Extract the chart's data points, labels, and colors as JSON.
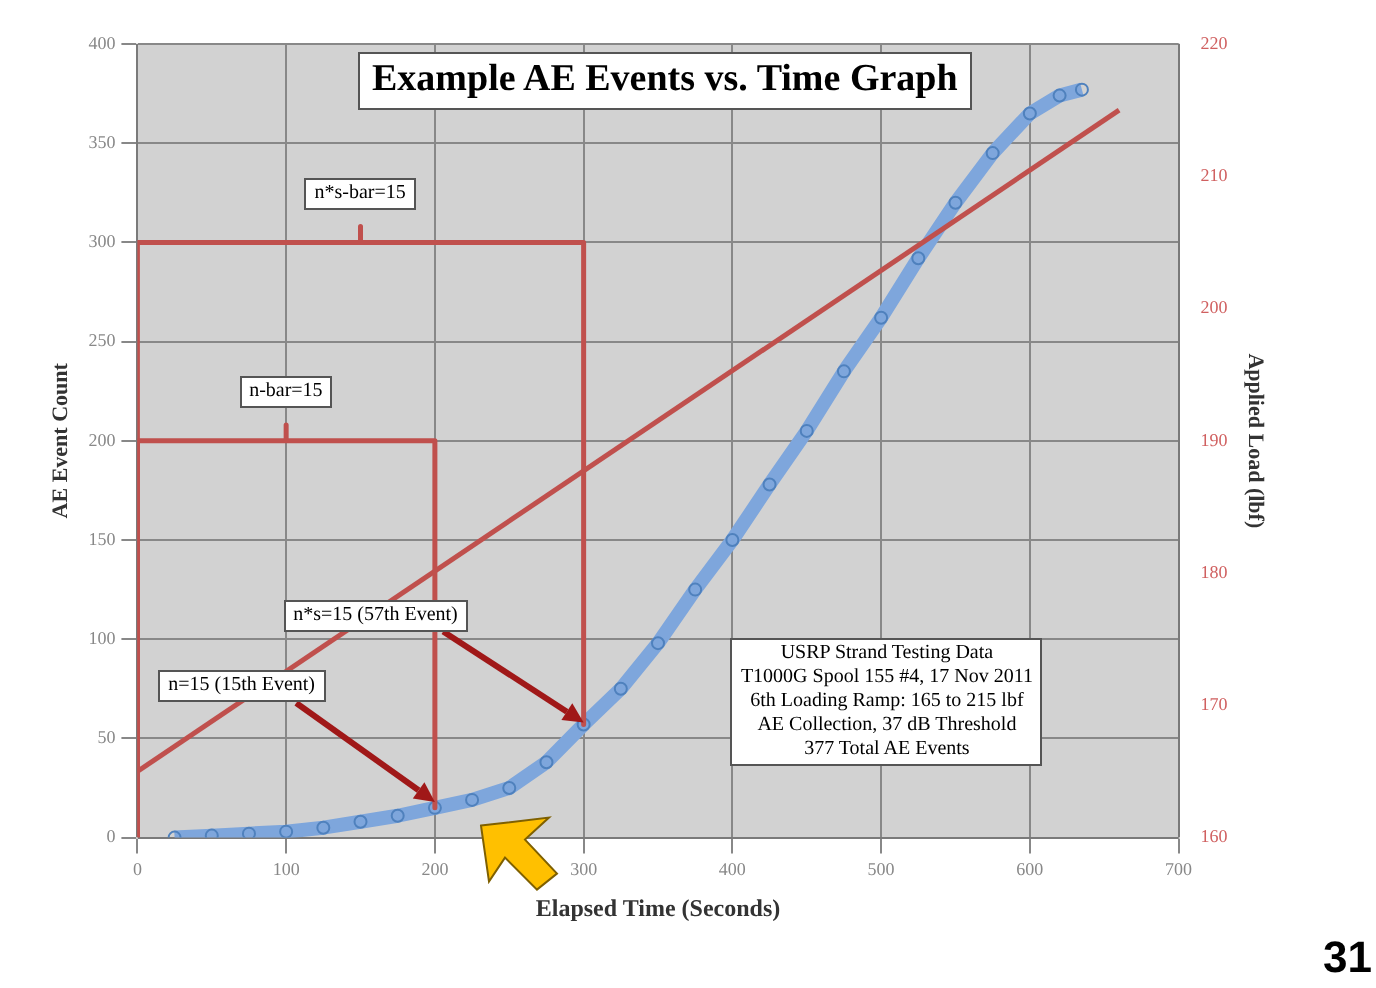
{
  "chart_data": {
    "type": "line",
    "title": "Example AE Events vs. Time Graph",
    "xlabel": "Elapsed Time (Seconds)",
    "ylabel": "AE Event Count",
    "y2label": "Applied Load (lbf)",
    "xlim": [
      0,
      700
    ],
    "xticks": [
      0,
      100,
      200,
      300,
      400,
      500,
      600,
      700
    ],
    "ylim": [
      0,
      400
    ],
    "yticks": [
      0,
      50,
      100,
      150,
      200,
      250,
      300,
      350,
      400
    ],
    "y2lim": [
      160,
      220
    ],
    "y2ticks": [
      160,
      170,
      180,
      190,
      200,
      210,
      220
    ],
    "grid": true,
    "legend": false,
    "line_style": "solid",
    "series": [
      {
        "type": "line",
        "color": "#c0504d",
        "marker": "none",
        "x": [
          0,
          0,
          150,
          150,
          150,
          300,
          300
        ],
        "values": [
          0,
          300,
          300,
          308,
          300,
          300,
          57
        ]
      },
      {
        "type": "line",
        "color": "#c0504d",
        "marker": "none",
        "x": [
          0,
          0,
          100,
          100,
          100,
          200,
          200
        ],
        "values": [
          0,
          200,
          200,
          208,
          200,
          200,
          15
        ]
      },
      {
        "type": "line",
        "color": "#c0504d",
        "axis": "y2",
        "marker": "none",
        "x": [
          0,
          660
        ],
        "values": [
          165,
          215
        ]
      },
      {
        "type": "line",
        "color": "#7ea6dc",
        "marker": "circle",
        "x": [
          25,
          50,
          75,
          100,
          125,
          150,
          175,
          200,
          225,
          250,
          275,
          300,
          325,
          350,
          375,
          400,
          425,
          450,
          475,
          500,
          525,
          550,
          575,
          600,
          620,
          635
        ],
        "values": [
          0,
          1,
          2,
          3,
          5,
          8,
          11,
          15,
          19,
          25,
          38,
          57,
          75,
          98,
          125,
          150,
          178,
          205,
          235,
          262,
          292,
          320,
          345,
          365,
          374,
          377
        ]
      }
    ],
    "annotations": [
      "n*s-bar=15",
      "n-bar=15",
      "n*s=15 (57th Event)",
      "n=15 (15th Event)",
      "USRP Strand Testing Data\nT1000G Spool 155 #4, 17 Nov 2011\n6th Loading Ramp: 165 to 215 lbf\nAE Collection, 37 dB Threshold\n377 Total AE Events",
      "31"
    ]
  }
}
